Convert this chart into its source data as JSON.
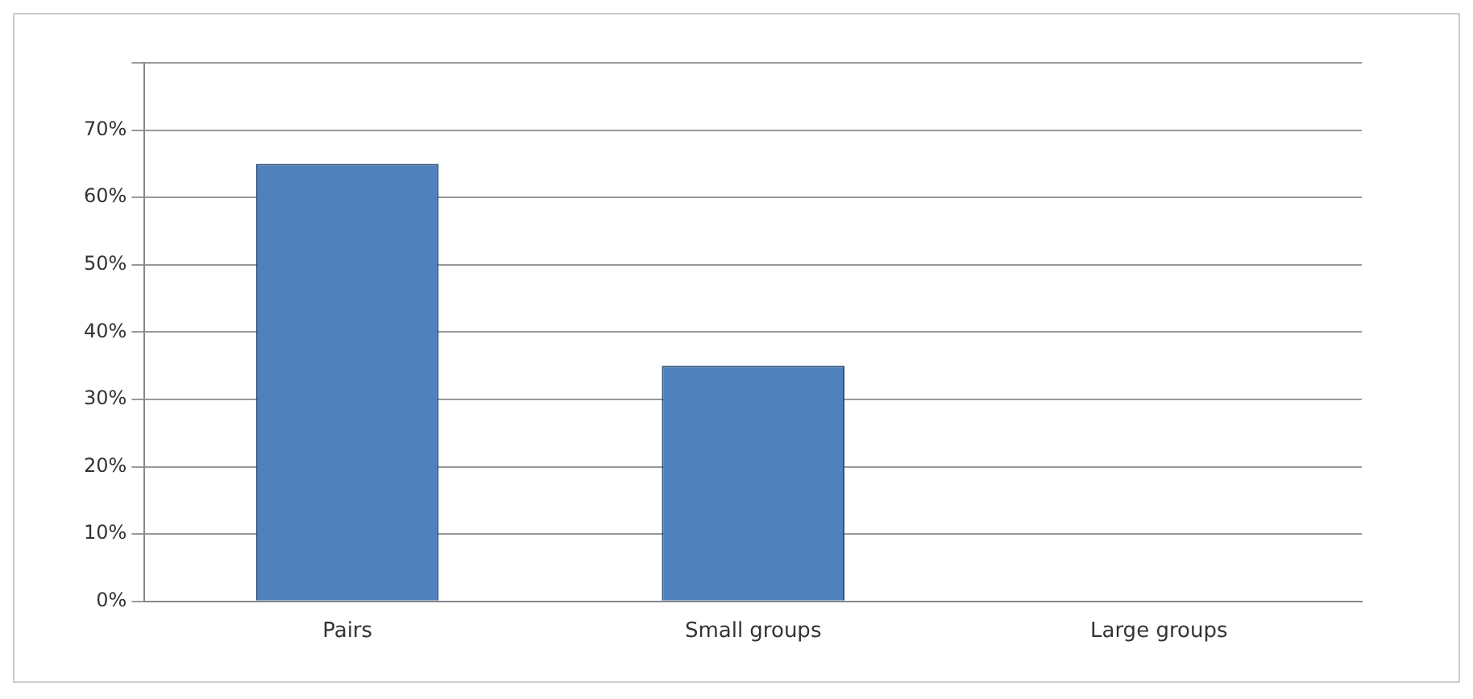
{
  "chart_data": {
    "type": "bar",
    "categories": [
      "Pairs",
      "Small groups",
      "Large groups"
    ],
    "values": [
      65,
      35,
      0
    ],
    "color": "#4f81bd",
    "ylim": [
      0,
      80
    ],
    "yticks": [
      {
        "value": 0,
        "label": "0%"
      },
      {
        "value": 10,
        "label": "10%"
      },
      {
        "value": 20,
        "label": "20%"
      },
      {
        "value": 30,
        "label": "30%"
      },
      {
        "value": 40,
        "label": "40%"
      },
      {
        "value": 50,
        "label": "50%"
      },
      {
        "value": 60,
        "label": "60%"
      },
      {
        "value": 70,
        "label": "70%"
      },
      {
        "value": 80,
        "label": null
      }
    ],
    "grid": "y"
  }
}
